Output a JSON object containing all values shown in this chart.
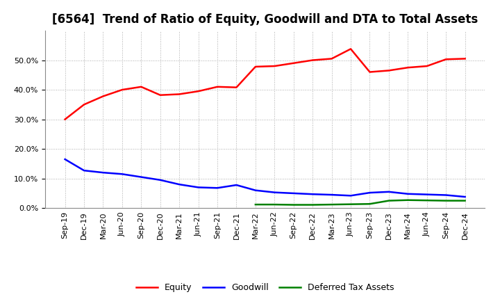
{
  "title": "[6564]  Trend of Ratio of Equity, Goodwill and DTA to Total Assets",
  "x_labels": [
    "Sep-19",
    "Dec-19",
    "Mar-20",
    "Jun-20",
    "Sep-20",
    "Dec-20",
    "Mar-21",
    "Jun-21",
    "Sep-21",
    "Dec-21",
    "Mar-22",
    "Jun-22",
    "Sep-22",
    "Dec-22",
    "Mar-23",
    "Jun-23",
    "Sep-23",
    "Dec-23",
    "Mar-24",
    "Jun-24",
    "Sep-24",
    "Dec-24"
  ],
  "equity": [
    0.3,
    0.35,
    0.378,
    0.4,
    0.41,
    0.382,
    0.385,
    0.395,
    0.41,
    0.408,
    0.478,
    0.48,
    0.49,
    0.5,
    0.505,
    0.538,
    0.46,
    0.465,
    0.475,
    0.48,
    0.503,
    0.505
  ],
  "goodwill": [
    0.165,
    0.127,
    0.12,
    0.115,
    0.105,
    0.095,
    0.08,
    0.07,
    0.068,
    0.078,
    0.06,
    0.053,
    0.05,
    0.047,
    0.045,
    0.042,
    0.052,
    0.055,
    0.048,
    0.046,
    0.044,
    0.038
  ],
  "dta": [
    null,
    null,
    null,
    null,
    null,
    null,
    null,
    null,
    null,
    null,
    0.012,
    0.012,
    0.011,
    0.011,
    0.012,
    0.013,
    0.014,
    0.025,
    0.027,
    0.026,
    0.025,
    0.025
  ],
  "equity_color": "#FF0000",
  "goodwill_color": "#0000FF",
  "dta_color": "#008000",
  "background_color": "#FFFFFF",
  "plot_bg_color": "#FFFFFF",
  "grid_color": "#AAAAAA",
  "ylim": [
    0.0,
    0.6
  ],
  "yticks": [
    0.0,
    0.1,
    0.2,
    0.3,
    0.4,
    0.5
  ],
  "legend_labels": [
    "Equity",
    "Goodwill",
    "Deferred Tax Assets"
  ],
  "title_fontsize": 12,
  "tick_fontsize": 8,
  "legend_fontsize": 9,
  "line_width": 1.8
}
